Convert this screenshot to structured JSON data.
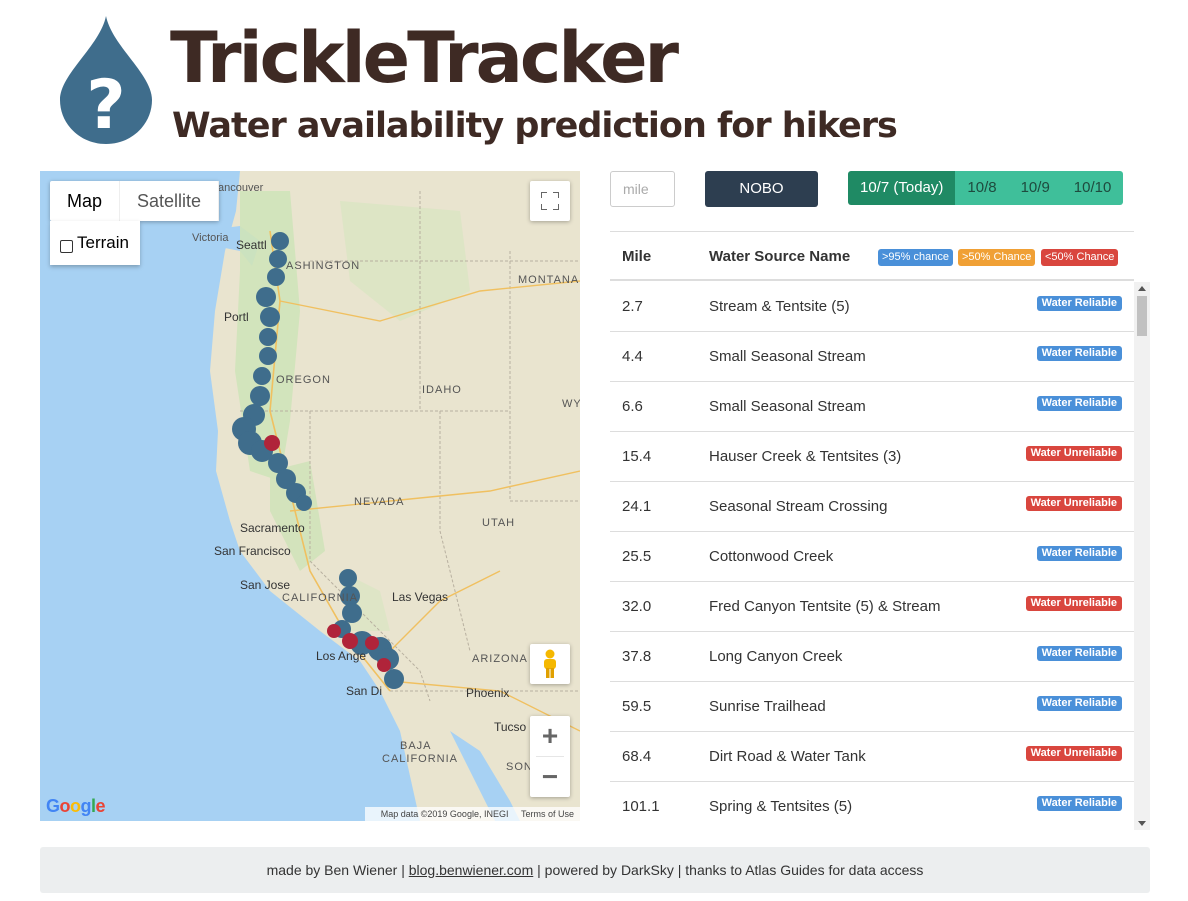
{
  "app": {
    "title": "TrickleTracker",
    "subtitle": "Water availability prediction for hikers",
    "logo_icon": "question-drop-icon",
    "logo_color": "#3f6d8c"
  },
  "map": {
    "type_buttons": [
      "Map",
      "Satellite"
    ],
    "active_type": "Map",
    "terrain_label": "Terrain",
    "fullscreen_icon": "fullscreen-icon",
    "pegman_icon": "pegman-icon",
    "zoom_in": "+",
    "zoom_out": "−",
    "google_label": "Google",
    "attribution": "Map data ©2019 Google, INEGI",
    "terms": "Terms of Use",
    "place_labels": {
      "vancouver": "ancouver",
      "victoria": "Victoria",
      "seattle": "Seattl",
      "washington": "ASHINGTON",
      "montana": "MONTANA",
      "portland": "Portl",
      "oregon": "OREGON",
      "idaho": "IDAHO",
      "wy": "WY",
      "nevada": "NEVADA",
      "utah": "UTAH",
      "sacramento": "Sacramento",
      "san_francisco": "San Francisco",
      "san_jose": "San Jose",
      "california": "CALIFORNIA",
      "las_vegas": "Las Vegas",
      "arizona": "ARIZONA",
      "los_angeles": "Los Ange",
      "phoenix": "Phoenix",
      "san_diego": "San Di",
      "tucson": "Tucso",
      "baja": "BAJA",
      "baja_california": "CALIFORNIA",
      "son": "SON"
    },
    "marker_colors": {
      "reliable": "#3f6d8c",
      "unreliable": "#b0243a"
    }
  },
  "controls": {
    "mile_placeholder": "mile",
    "direction_button": "NOBO",
    "dates": [
      "10/7 (Today)",
      "10/8",
      "10/9",
      "10/10"
    ],
    "active_date": "10/7 (Today)"
  },
  "table": {
    "headers": {
      "mile": "Mile",
      "name": "Water Source Name"
    },
    "legend": [
      {
        "label": ">95% chance",
        "color": "#4a90d9"
      },
      {
        "label": ">50% Chance",
        "color": "#f0a035"
      },
      {
        "label": "<50% Chance",
        "color": "#d9463e"
      }
    ],
    "rows": [
      {
        "mile": "2.7",
        "name": "Stream & Tentsite (5)",
        "status": "Water Reliable",
        "kind": "reliable"
      },
      {
        "mile": "4.4",
        "name": "Small Seasonal Stream",
        "status": "Water Reliable",
        "kind": "reliable"
      },
      {
        "mile": "6.6",
        "name": "Small Seasonal Stream",
        "status": "Water Reliable",
        "kind": "reliable"
      },
      {
        "mile": "15.4",
        "name": "Hauser Creek & Tentsites (3)",
        "status": "Water Unreliable",
        "kind": "unreliable"
      },
      {
        "mile": "24.1",
        "name": "Seasonal Stream Crossing",
        "status": "Water Unreliable",
        "kind": "unreliable"
      },
      {
        "mile": "25.5",
        "name": "Cottonwood Creek",
        "status": "Water Reliable",
        "kind": "reliable"
      },
      {
        "mile": "32.0",
        "name": "Fred Canyon Tentsite (5) & Stream",
        "status": "Water Unreliable",
        "kind": "unreliable"
      },
      {
        "mile": "37.8",
        "name": "Long Canyon Creek",
        "status": "Water Reliable",
        "kind": "reliable"
      },
      {
        "mile": "59.5",
        "name": "Sunrise Trailhead",
        "status": "Water Reliable",
        "kind": "reliable"
      },
      {
        "mile": "68.4",
        "name": "Dirt Road & Water Tank",
        "status": "Water Unreliable",
        "kind": "unreliable"
      },
      {
        "mile": "101.1",
        "name": "Spring & Tentsites (5)",
        "status": "Water Reliable",
        "kind": "reliable"
      }
    ]
  },
  "footer": {
    "prefix": "made by Ben Wiener | ",
    "link": "blog.benwiener.com",
    "suffix": " | powered by DarkSky | thanks to Atlas Guides for data access"
  }
}
